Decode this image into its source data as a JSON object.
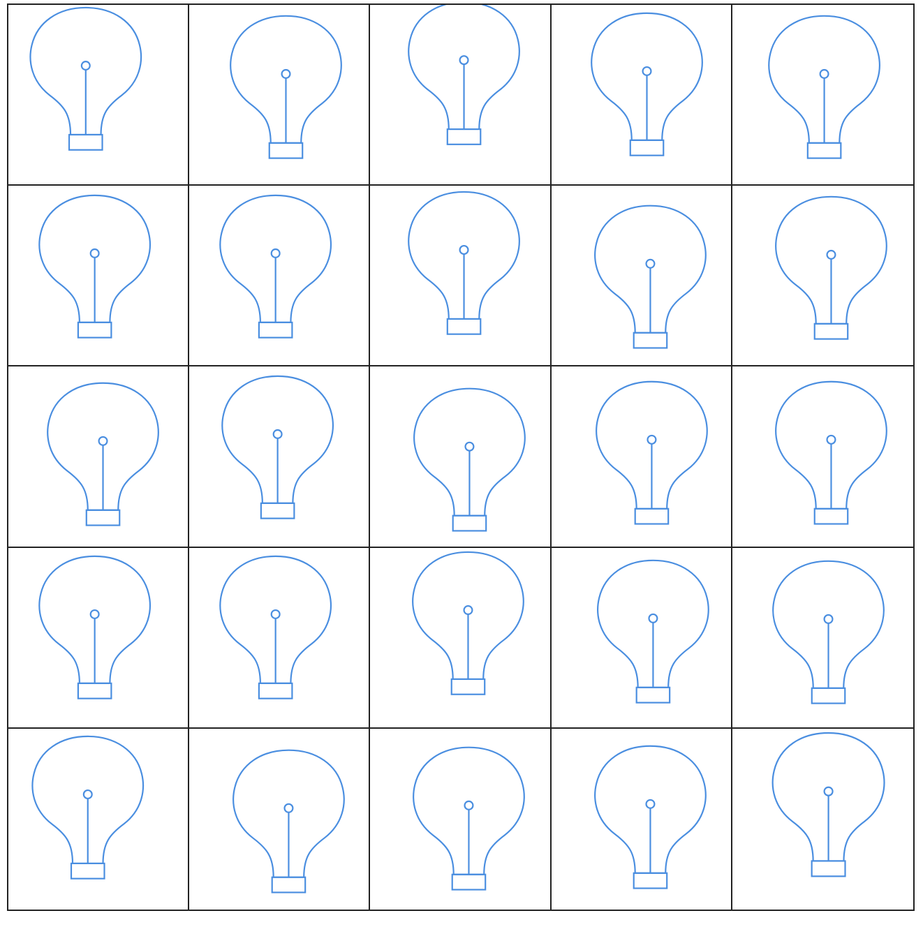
{
  "game": {
    "type": "lights-out",
    "rows": 5,
    "cols": 5,
    "bulb_color": "#4a8ee0",
    "grid_line_color": "#222222",
    "background_color": "#ffffff",
    "bulb_icon": "lightbulb-icon",
    "cells": [
      [
        "off",
        "off",
        "off",
        "off",
        "off"
      ],
      [
        "off",
        "off",
        "off",
        "off",
        "off"
      ],
      [
        "off",
        "off",
        "off",
        "off",
        "off"
      ],
      [
        "off",
        "off",
        "off",
        "off",
        "off"
      ],
      [
        "off",
        "off",
        "off",
        "off",
        "off"
      ]
    ]
  }
}
